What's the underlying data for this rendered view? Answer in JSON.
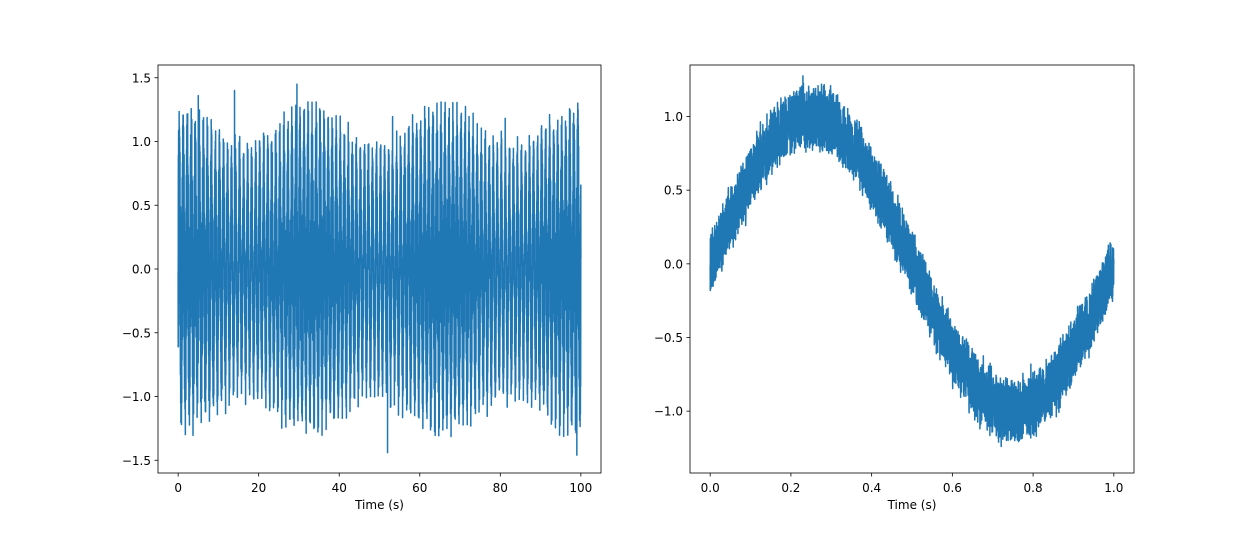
{
  "chart_data": [
    {
      "type": "line",
      "title": "",
      "xlabel": "Time (s)",
      "ylabel": "",
      "xlim": [
        -5,
        105
      ],
      "ylim": [
        -1.6,
        1.6
      ],
      "xticks": [
        0,
        20,
        40,
        60,
        80,
        100
      ],
      "xtick_labels": [
        "0",
        "20",
        "40",
        "60",
        "80",
        "100"
      ],
      "yticks": [
        -1.5,
        -1.0,
        -0.5,
        0.0,
        0.5,
        1.0,
        1.5
      ],
      "ytick_labels": [
        "−1.5",
        "−1.0",
        "−0.5",
        "0.0",
        "0.5",
        "1.0",
        "1.5"
      ],
      "grid": false,
      "color": "#1f77b4",
      "series": [
        {
          "description_values": "dense noisy oscillation sampled 0-100 s; peak envelope about 1.3 with occasional spikes to 1.45, inner envelope varying between about 0.5 and 1.0",
          "x_start": 0,
          "x_end": 100,
          "amplitude_outer": 1.3,
          "inner_envelope_period_s": 33,
          "inner_min": 0.5,
          "inner_max": 1.0,
          "cycles": 100,
          "max_value": 1.45,
          "min_value": -1.46
        }
      ]
    },
    {
      "type": "line",
      "title": "",
      "xlabel": "Time (s)",
      "ylabel": "",
      "xlim": [
        -0.05,
        1.05
      ],
      "ylim": [
        -1.42,
        1.35
      ],
      "xticks": [
        0.0,
        0.2,
        0.4,
        0.6,
        0.8,
        1.0
      ],
      "xtick_labels": [
        "0.0",
        "0.2",
        "0.4",
        "0.6",
        "0.8",
        "1.0"
      ],
      "yticks": [
        -1.0,
        -0.5,
        0.0,
        0.5,
        1.0
      ],
      "ytick_labels": [
        "−1.0",
        "−0.5",
        "0.0",
        "0.5",
        "1.0"
      ],
      "grid": false,
      "color": "#1f77b4",
      "series": [
        {
          "x_start": 0.0,
          "x_end": 1.0,
          "sine_amplitude": 1.0,
          "sine_frequency_hz": 1,
          "noise_band": 0.22,
          "max_value": 1.3,
          "min_value": -1.31
        }
      ]
    }
  ]
}
